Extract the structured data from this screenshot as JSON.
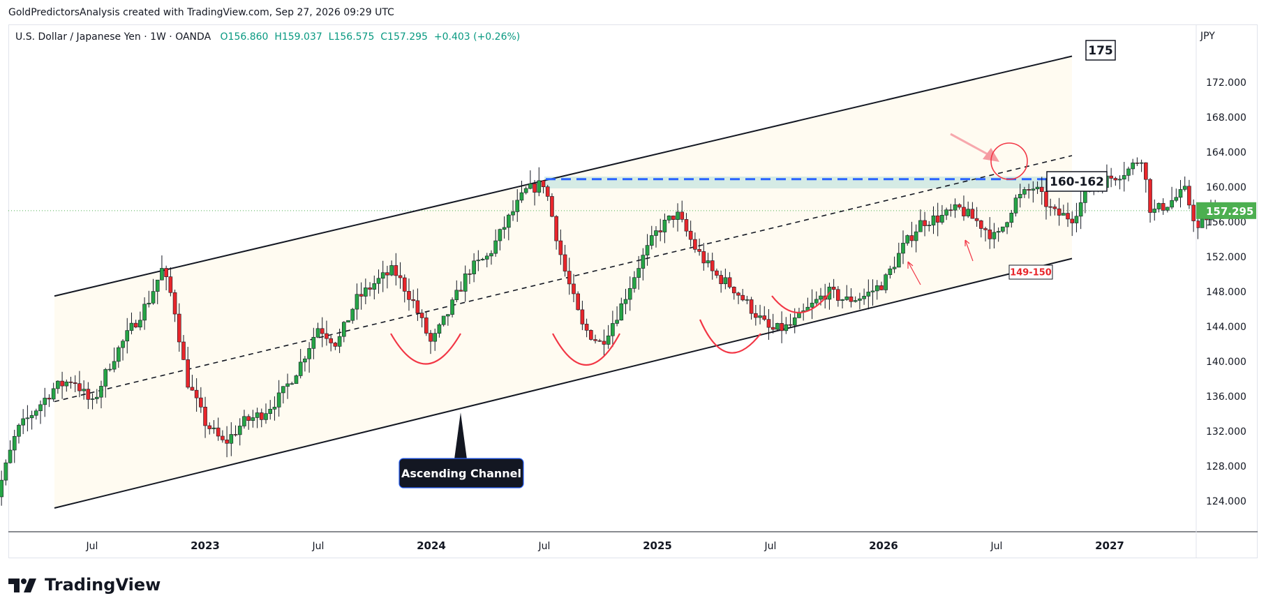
{
  "header": {
    "text": "GoldPredictorsAnalysis created with TradingView.com, Sep 27, 2026 09:29 UTC"
  },
  "legend": {
    "symbol": "U.S. Dollar / Japanese Yen · 1W · OANDA",
    "open": "O156.860",
    "high": "H159.037",
    "low": "L156.575",
    "close": "C157.295",
    "change": "+0.403 (+0.26%)"
  },
  "currency": "JPY",
  "price_label": "157.295",
  "footer": {
    "brand": "TradingView"
  },
  "annotations": {
    "target_175": "175",
    "resistance_zone": "160-162",
    "support_zone": "149-150",
    "channel_label": "Ascending Channel"
  },
  "colors": {
    "up": "#26a546",
    "down": "#e8262b",
    "current_price": "#4caf50",
    "zone": "#b2dfdb",
    "dashed_blue": "#2962ff",
    "arc": "#f23645"
  },
  "chart_data": {
    "type": "candlestick",
    "title": "U.S. Dollar / Japanese Yen · 1W · OANDA",
    "y_ticks": [
      "172.000",
      "168.000",
      "164.000",
      "160.000",
      "156.000",
      "152.000",
      "148.000",
      "144.000",
      "140.000",
      "136.000",
      "132.000",
      "128.000",
      "124.000"
    ],
    "x_ticks": [
      "Jul",
      "2023",
      "Jul",
      "2024",
      "Jul",
      "2025",
      "Jul",
      "2026",
      "Jul",
      "2027"
    ],
    "ylim": [
      121,
      179
    ],
    "last_price": 157.295,
    "resistance_level": 160.9,
    "resistance_zone": [
      160,
      162
    ],
    "channel": {
      "upper": {
        "start": [
          "2022-05",
          147.5
        ],
        "end": [
          "2026-11",
          175
        ]
      },
      "mid": {
        "start": [
          "2022-05",
          135.4
        ],
        "end": [
          "2026-11",
          163.6
        ]
      },
      "lower": {
        "start": [
          "2022-05",
          123.2
        ],
        "end": [
          "2026-11",
          151.8
        ]
      }
    }
  }
}
